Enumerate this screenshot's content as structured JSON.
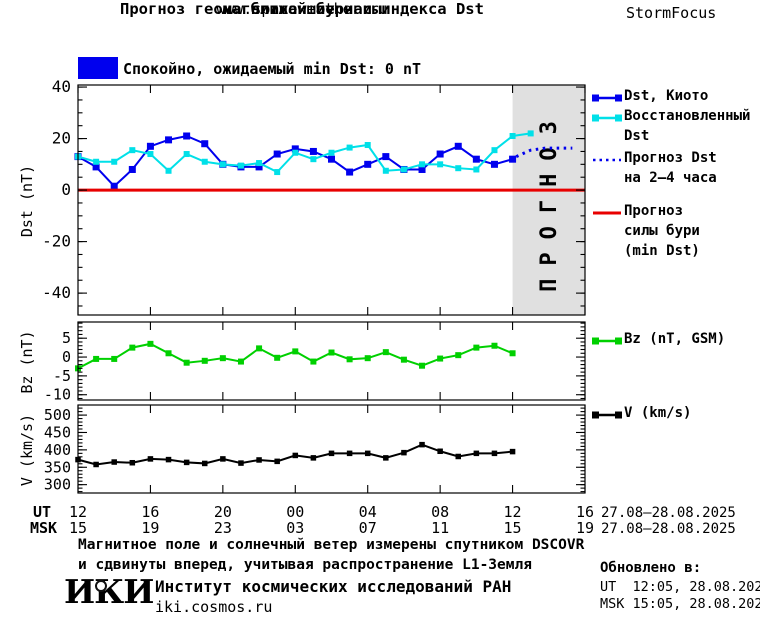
{
  "header": {
    "title_line1": "Прогноз геомагнитной бури и индекса Dst",
    "title_line2": "на ближайшие часы",
    "subtitle": "www.spaceweather.ru",
    "brand": "StormFocus"
  },
  "status": {
    "label": "Спокойно, ожидаемый min Dst: 0 nT",
    "swatch_color": "#0000ee"
  },
  "forecast_overlay": {
    "label": "ПРОГНОЗ",
    "bg": "#e0e0e0",
    "text_color": "#c9c9c9"
  },
  "legend": {
    "entries": [
      {
        "id": "dst-kyoto",
        "style": "line-squares",
        "color": "#0000ee",
        "label_lines": [
          "Dst, Киото"
        ]
      },
      {
        "id": "restored-dst",
        "style": "line-squares",
        "color": "#00e0e8",
        "label_lines": [
          "Восстановленный",
          "Dst"
        ]
      },
      {
        "id": "forecast-dst",
        "style": "dotted",
        "color": "#0000ee",
        "label_lines": [
          "Прогноз Dst",
          "на 2–4 часа"
        ]
      },
      {
        "id": "storm-level",
        "style": "solid",
        "color": "#e80000",
        "label_lines": [
          "Прогноз",
          "силы бури",
          "(min Dst)"
        ]
      },
      {
        "id": "bz",
        "style": "line-squares",
        "color": "#00d000",
        "label_lines": [
          "Bz (nT, GSM)"
        ]
      },
      {
        "id": "v",
        "style": "line-squares",
        "color": "#000000",
        "label_lines": [
          "V (km/s)"
        ]
      }
    ]
  },
  "xaxis": {
    "ut_row_label": "UT",
    "msk_row_label": "MSK",
    "major_hours": [
      0,
      4,
      8,
      12,
      16,
      20,
      24,
      28
    ],
    "ut_labels": [
      "12",
      "16",
      "20",
      "00",
      "04",
      "08",
      "12",
      "16"
    ],
    "msk_labels": [
      "15",
      "19",
      "23",
      "03",
      "07",
      "11",
      "15",
      "19"
    ],
    "ut_date": "27.08–28.08.2025",
    "msk_date": "27.08–28.08.2025"
  },
  "chart_data": [
    {
      "type": "line",
      "panel": "dst",
      "ylabel": "Dst (nT)",
      "ylim": [
        -48.5,
        40.8
      ],
      "yticks": [
        40,
        20,
        0,
        -20,
        -40
      ],
      "x_unit": "hours from 12:00 UT 27.08.2025",
      "forecast_region": {
        "from": 24,
        "to": 28
      },
      "series": [
        {
          "id": "dst-kyoto",
          "name": "Dst, Киото",
          "color": "#0000ee",
          "marker_px": 7,
          "x": [
            0,
            1,
            2,
            3,
            4,
            5,
            6,
            7,
            8,
            9,
            10,
            11,
            12,
            13,
            14,
            15,
            16,
            17,
            18,
            19,
            20,
            21,
            22,
            23,
            24
          ],
          "values": [
            13,
            9,
            1.5,
            8,
            17,
            19.5,
            21,
            18,
            10,
            9,
            9,
            14,
            16,
            15,
            12,
            7,
            10,
            13,
            8,
            8,
            14,
            17,
            12,
            10,
            12
          ]
        },
        {
          "id": "restored-dst",
          "name": "Восстановленный Dst",
          "color": "#00e0e8",
          "marker_px": 6,
          "x": [
            0,
            1,
            2,
            3,
            4,
            5,
            6,
            7,
            8,
            9,
            10,
            11,
            12,
            13,
            14,
            15,
            16,
            17,
            18,
            19,
            20,
            21,
            22,
            23,
            24,
            25
          ],
          "values": [
            13,
            11,
            11,
            15.5,
            14,
            7.5,
            14,
            11,
            10,
            9.5,
            10.5,
            7,
            14.5,
            12,
            14.5,
            16.5,
            17.5,
            7.5,
            8,
            10,
            10,
            8.5,
            8,
            15.5,
            21,
            22
          ]
        },
        {
          "id": "forecast-dst",
          "name": "Прогноз Dst на 2–4 часа",
          "color": "#0000ee",
          "line": "dotted",
          "x": [
            24.2,
            25,
            25.8,
            27.3
          ],
          "values": [
            13,
            15.5,
            16.3,
            16.3
          ]
        },
        {
          "id": "storm-level",
          "name": "Прогноз силы бури (min Dst)",
          "color": "#e80000",
          "line": "hline",
          "value": 0
        }
      ]
    },
    {
      "type": "line",
      "panel": "bz",
      "ylabel": "Bz (nT)",
      "ylim": [
        -11.4,
        9.3
      ],
      "yticks": [
        5,
        0,
        -5,
        -10
      ],
      "series": [
        {
          "id": "bz",
          "name": "Bz (nT, GSM)",
          "color": "#00d000",
          "marker_px": 6,
          "x": [
            0,
            1,
            2,
            3,
            4,
            5,
            6,
            7,
            8,
            9,
            10,
            11,
            12,
            13,
            14,
            15,
            16,
            17,
            18,
            19,
            20,
            21,
            22,
            23,
            24
          ],
          "values": [
            -3,
            -0.5,
            -0.5,
            2.5,
            3.5,
            1,
            -1.5,
            -1,
            -0.3,
            -1.2,
            2.3,
            -0.2,
            1.5,
            -1.2,
            1.2,
            -0.6,
            -0.3,
            1.3,
            -0.7,
            -2.3,
            -0.4,
            0.5,
            2.5,
            3,
            1
          ]
        }
      ]
    },
    {
      "type": "line",
      "panel": "v",
      "ylabel": "V (km/s)",
      "ylim": [
        276,
        529
      ],
      "yticks": [
        500,
        450,
        400,
        350,
        300
      ],
      "series": [
        {
          "id": "v",
          "name": "V (km/s)",
          "color": "#000000",
          "marker_px": 5.5,
          "x": [
            0,
            1,
            2,
            3,
            4,
            5,
            6,
            7,
            8,
            9,
            10,
            11,
            12,
            13,
            14,
            15,
            16,
            17,
            18,
            19,
            20,
            21,
            22,
            23,
            24
          ],
          "values": [
            372,
            358,
            365,
            363,
            374,
            372,
            364,
            361,
            374,
            362,
            371,
            367,
            384,
            377,
            390,
            390,
            390,
            377,
            392,
            415,
            396,
            381,
            390,
            390,
            395
          ]
        }
      ]
    }
  ],
  "footer": {
    "note_line1": "Магнитное поле и солнечный ветер измерены спутником DSCOVR",
    "note_line2": "и сдвинуты вперед, учитывая распространение L1-Земля",
    "logo_text": "ИКИ",
    "institute": "Институт космических исследований РАН",
    "site": "iki.cosmos.ru",
    "updated_label": "Обновлено в:",
    "updated_ut": "UT  12:05, 28.08.2025",
    "updated_msk": "MSK 15:05, 28.08.2025"
  }
}
